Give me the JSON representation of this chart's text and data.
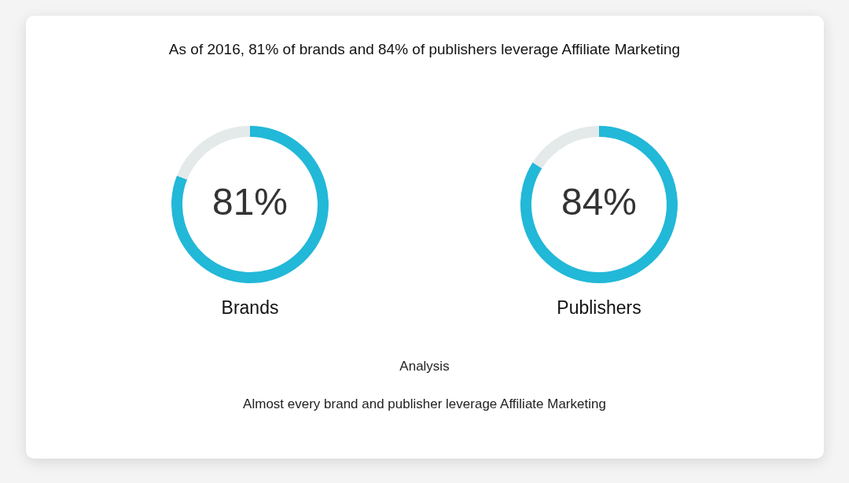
{
  "chart_data": [
    {
      "type": "donut",
      "title": "As of 2016, 81% of brands and 84% of publishers leverage Affiliate Marketing",
      "xlabel": "Brands",
      "categories": [
        null,
        null
      ],
      "values": [
        81,
        19
      ],
      "colors": [
        "#22b8d8",
        "#e4e9ea"
      ],
      "value_labels": [
        "81%",
        null
      ]
    },
    {
      "type": "donut",
      "xlabel": "Publishers",
      "categories": [
        null,
        null
      ],
      "values": [
        84,
        16
      ],
      "colors": [
        "#22b8d8",
        "#e4e9ea"
      ],
      "value_labels": [
        "84%",
        null
      ],
      "annotations": [
        "Analysis",
        "Almost every brand and publisher leverage Affiliate Marketing"
      ]
    }
  ]
}
